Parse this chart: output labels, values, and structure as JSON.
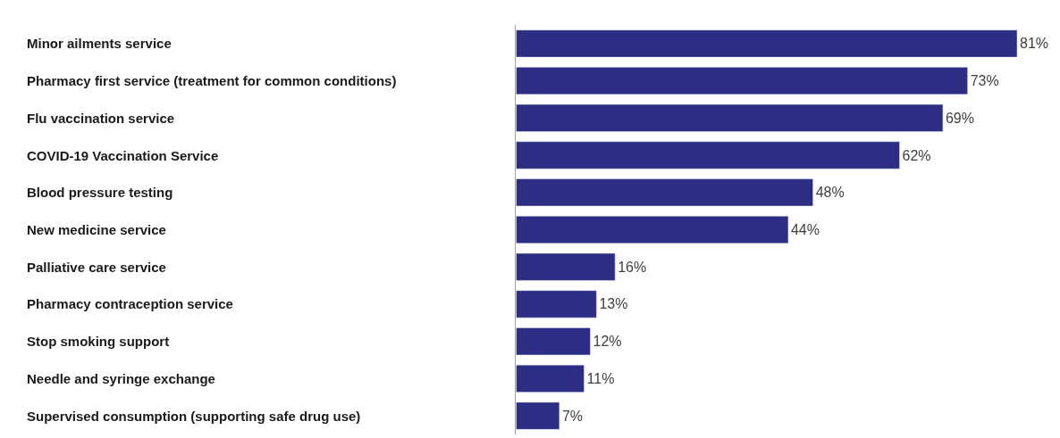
{
  "chart_data": {
    "type": "bar",
    "orientation": "horizontal",
    "categories": [
      "Minor ailments service",
      "Pharmacy first service (treatment for common conditions)",
      "Flu vaccination service",
      "COVID-19 Vaccination Service",
      "Blood pressure testing",
      "New medicine service",
      "Palliative care service",
      "Pharmacy contraception service",
      "Stop smoking support",
      "Needle and syringe exchange",
      "Supervised consumption (supporting safe drug use)"
    ],
    "values": [
      81,
      73,
      69,
      62,
      48,
      44,
      16,
      13,
      12,
      11,
      7
    ],
    "value_labels": [
      "81%",
      "73%",
      "69%",
      "62%",
      "48%",
      "44%",
      "16%",
      "13%",
      "12%",
      "11%",
      "7%"
    ],
    "color": "#2e2d84"
  }
}
